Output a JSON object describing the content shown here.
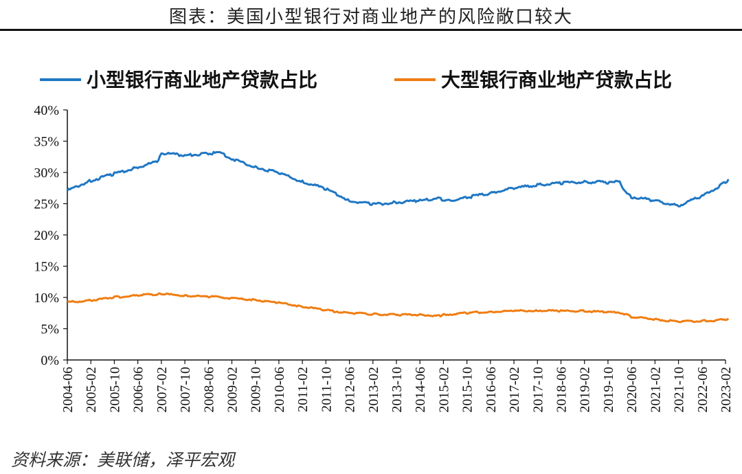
{
  "header": {
    "title": "图表：美国小型银行对商业地产的风险敞口较大"
  },
  "footer": {
    "source": "资料来源：美联储，泽平宏观"
  },
  "chart_data": {
    "type": "line",
    "title": "图表：美国小型银行对商业地产的风险敞口较大",
    "xlabel": "",
    "ylabel": "",
    "ylim": [
      0,
      40
    ],
    "yticks": [
      "0%",
      "5%",
      "10%",
      "15%",
      "20%",
      "25%",
      "30%",
      "35%",
      "40%"
    ],
    "xticks": [
      "2004-06",
      "2005-02",
      "2005-10",
      "2006-06",
      "2007-02",
      "2007-10",
      "2008-06",
      "2009-02",
      "2009-10",
      "2010-06",
      "2011-02",
      "2011-10",
      "2012-06",
      "2013-02",
      "2013-10",
      "2014-06",
      "2015-02",
      "2015-10",
      "2016-06",
      "2017-02",
      "2017-10",
      "2018-06",
      "2019-02",
      "2019-10",
      "2020-06",
      "2021-02",
      "2021-10",
      "2022-06",
      "2023-02"
    ],
    "grid": false,
    "legend_position": "top",
    "x": [
      "2004-06",
      "2005-02",
      "2005-10",
      "2006-06",
      "2007-01",
      "2007-02",
      "2007-10",
      "2008-06",
      "2008-10",
      "2009-02",
      "2009-10",
      "2010-06",
      "2011-02",
      "2011-10",
      "2012-06",
      "2013-02",
      "2013-10",
      "2014-06",
      "2015-01",
      "2015-02",
      "2015-10",
      "2016-06",
      "2017-02",
      "2017-10",
      "2018-06",
      "2019-02",
      "2019-10",
      "2020-02",
      "2020-04",
      "2020-06",
      "2021-02",
      "2021-10",
      "2022-06",
      "2023-02",
      "2023-03"
    ],
    "series": [
      {
        "name": "小型银行商业地产贷款占比",
        "color": "#1f77c4",
        "values": [
          27.2,
          28.8,
          29.9,
          30.9,
          31.9,
          33.2,
          32.8,
          33.1,
          33.3,
          32.3,
          31.0,
          30.0,
          28.6,
          27.5,
          25.6,
          25.0,
          25.3,
          25.6,
          26.1,
          25.5,
          26.1,
          26.8,
          27.6,
          28.1,
          28.4,
          28.6,
          28.5,
          28.6,
          26.9,
          26.2,
          25.6,
          24.8,
          26.3,
          28.5,
          28.9
        ]
      },
      {
        "name": "大型银行商业地产贷款占比",
        "color": "#f07d12",
        "values": [
          9.3,
          9.6,
          10.1,
          10.4,
          10.6,
          10.6,
          10.4,
          10.2,
          10.1,
          9.9,
          9.7,
          9.2,
          8.6,
          8.0,
          7.6,
          7.4,
          7.3,
          7.3,
          7.1,
          7.3,
          7.6,
          7.8,
          7.9,
          8.0,
          7.9,
          7.9,
          7.7,
          7.7,
          7.4,
          6.9,
          6.6,
          6.2,
          6.3,
          6.5,
          6.6
        ]
      }
    ]
  }
}
